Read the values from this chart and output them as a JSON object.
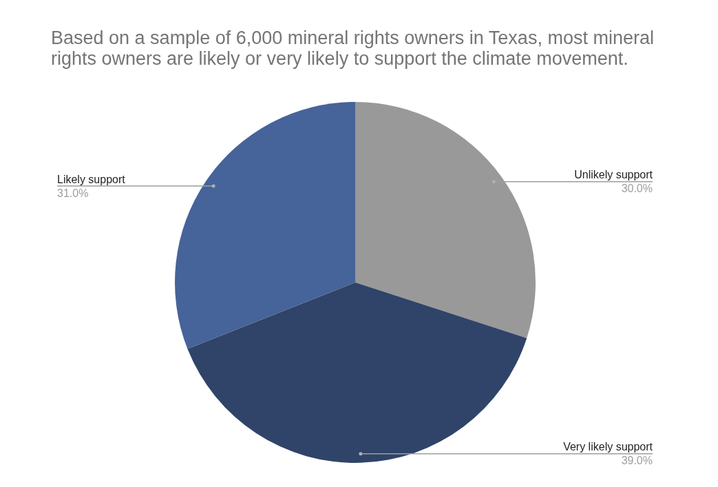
{
  "chart_data": {
    "type": "pie",
    "title": "Based on a sample of 6,000 mineral rights owners in Texas, most mineral rights owners are likely or very likely to support the climate movement.",
    "categories": [
      "Unlikely support",
      "Very likely support",
      "Likely support"
    ],
    "values": [
      30,
      39,
      31
    ],
    "value_labels": [
      "30.0%",
      "39.0%",
      "31.0%"
    ],
    "colors": [
      "#999999",
      "#2f4468",
      "#46639a"
    ],
    "legend": false
  }
}
